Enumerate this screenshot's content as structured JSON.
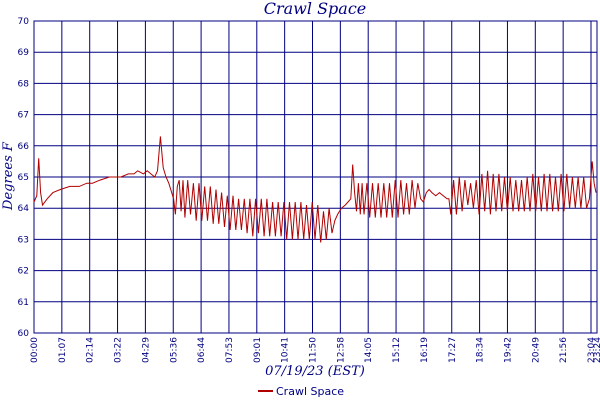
{
  "chart_data": {
    "type": "line",
    "title": "Crawl Space",
    "xlabel": "07/19/23 (EST)",
    "ylabel": "Degrees F",
    "ylim": [
      60,
      70
    ],
    "yticks": [
      60,
      61,
      62,
      63,
      64,
      65,
      66,
      67,
      68,
      69,
      70
    ],
    "xticks": [
      "00:00",
      "01:07",
      "02:14",
      "03:22",
      "04:29",
      "05:36",
      "06:44",
      "07:53",
      "09:01",
      "10:41",
      "11:50",
      "12:58",
      "14:05",
      "15:12",
      "16:19",
      "17:27",
      "18:34",
      "19:42",
      "20:49",
      "21:56",
      "23:04",
      "23:24"
    ],
    "grid": true,
    "legend": "bottom-center",
    "colors": {
      "series": "#b00000",
      "axis": "#000080"
    },
    "series": [
      {
        "name": "Crawl Space",
        "points": [
          [
            0,
            64.2
          ],
          [
            3,
            64.4
          ],
          [
            5,
            65.6
          ],
          [
            7,
            64.5
          ],
          [
            9,
            64.1
          ],
          [
            14,
            64.3
          ],
          [
            20,
            64.5
          ],
          [
            28,
            64.6
          ],
          [
            38,
            64.7
          ],
          [
            48,
            64.7
          ],
          [
            56,
            64.8
          ],
          [
            62,
            64.8
          ],
          [
            70,
            64.9
          ],
          [
            80,
            65.0
          ],
          [
            92,
            65.0
          ],
          [
            100,
            65.1
          ],
          [
            106,
            65.1
          ],
          [
            110,
            65.2
          ],
          [
            116,
            65.1
          ],
          [
            120,
            65.2
          ],
          [
            124,
            65.1
          ],
          [
            128,
            65.0
          ],
          [
            131,
            65.2
          ],
          [
            134,
            66.3
          ],
          [
            137,
            65.3
          ],
          [
            140,
            65.0
          ],
          [
            143,
            64.8
          ],
          [
            146,
            64.5
          ],
          [
            148,
            64.3
          ],
          [
            150,
            63.8
          ],
          [
            152,
            64.7
          ],
          [
            154,
            64.9
          ],
          [
            156,
            63.9
          ],
          [
            158,
            64.9
          ],
          [
            160,
            63.7
          ],
          [
            163,
            64.9
          ],
          [
            166,
            63.8
          ],
          [
            169,
            64.8
          ],
          [
            172,
            63.6
          ],
          [
            175,
            64.8
          ],
          [
            178,
            63.6
          ],
          [
            181,
            64.7
          ],
          [
            184,
            63.6
          ],
          [
            187,
            64.7
          ],
          [
            190,
            63.5
          ],
          [
            193,
            64.6
          ],
          [
            196,
            63.5
          ],
          [
            199,
            64.5
          ],
          [
            202,
            63.4
          ],
          [
            205,
            64.4
          ],
          [
            208,
            63.3
          ],
          [
            211,
            64.4
          ],
          [
            214,
            63.3
          ],
          [
            217,
            64.3
          ],
          [
            220,
            63.3
          ],
          [
            223,
            64.3
          ],
          [
            226,
            63.2
          ],
          [
            229,
            64.3
          ],
          [
            232,
            63.1
          ],
          [
            235,
            64.3
          ],
          [
            238,
            63.2
          ],
          [
            241,
            64.3
          ],
          [
            244,
            63.1
          ],
          [
            247,
            64.3
          ],
          [
            250,
            63.1
          ],
          [
            253,
            64.2
          ],
          [
            256,
            63.1
          ],
          [
            259,
            64.2
          ],
          [
            262,
            63.1
          ],
          [
            265,
            64.2
          ],
          [
            268,
            63.0
          ],
          [
            271,
            64.2
          ],
          [
            274,
            63.0
          ],
          [
            277,
            64.2
          ],
          [
            280,
            63.0
          ],
          [
            283,
            64.2
          ],
          [
            286,
            63.0
          ],
          [
            289,
            64.1
          ],
          [
            292,
            63.0
          ],
          [
            295,
            64.2
          ],
          [
            298,
            63.0
          ],
          [
            301,
            64.1
          ],
          [
            304,
            62.9
          ],
          [
            307,
            63.9
          ],
          [
            310,
            63.0
          ],
          [
            313,
            64.0
          ],
          [
            316,
            63.2
          ],
          [
            319,
            63.6
          ],
          [
            322,
            63.8
          ],
          [
            326,
            64.0
          ],
          [
            330,
            64.1
          ],
          [
            333,
            64.2
          ],
          [
            336,
            64.3
          ],
          [
            338,
            65.4
          ],
          [
            340,
            64.5
          ],
          [
            342,
            63.9
          ],
          [
            344,
            64.8
          ],
          [
            346,
            63.8
          ],
          [
            348,
            64.8
          ],
          [
            350,
            63.8
          ],
          [
            353,
            64.8
          ],
          [
            356,
            63.7
          ],
          [
            359,
            64.8
          ],
          [
            362,
            63.7
          ],
          [
            365,
            64.8
          ],
          [
            368,
            63.7
          ],
          [
            371,
            64.8
          ],
          [
            374,
            63.7
          ],
          [
            377,
            64.8
          ],
          [
            380,
            63.7
          ],
          [
            383,
            64.9
          ],
          [
            386,
            63.7
          ],
          [
            389,
            64.9
          ],
          [
            392,
            63.8
          ],
          [
            395,
            64.8
          ],
          [
            398,
            63.8
          ],
          [
            401,
            64.9
          ],
          [
            404,
            64.0
          ],
          [
            407,
            64.8
          ],
          [
            410,
            64.3
          ],
          [
            413,
            64.2
          ],
          [
            416,
            64.5
          ],
          [
            419,
            64.6
          ],
          [
            422,
            64.5
          ],
          [
            426,
            64.4
          ],
          [
            430,
            64.5
          ],
          [
            434,
            64.4
          ],
          [
            438,
            64.3
          ],
          [
            440,
            64.3
          ],
          [
            442,
            63.8
          ],
          [
            445,
            64.9
          ],
          [
            448,
            63.8
          ],
          [
            451,
            65.0
          ],
          [
            454,
            63.9
          ],
          [
            457,
            64.9
          ],
          [
            460,
            64.1
          ],
          [
            463,
            64.8
          ],
          [
            466,
            64.0
          ],
          [
            469,
            64.9
          ],
          [
            472,
            63.8
          ],
          [
            475,
            65.1
          ],
          [
            478,
            63.9
          ],
          [
            481,
            65.2
          ],
          [
            484,
            63.8
          ],
          [
            487,
            65.1
          ],
          [
            490,
            63.9
          ],
          [
            493,
            65.1
          ],
          [
            496,
            63.9
          ],
          [
            499,
            65.0
          ],
          [
            502,
            63.9
          ],
          [
            505,
            65.0
          ],
          [
            508,
            63.9
          ],
          [
            511,
            64.9
          ],
          [
            514,
            63.9
          ],
          [
            517,
            64.9
          ],
          [
            520,
            63.9
          ],
          [
            523,
            65.0
          ],
          [
            526,
            63.9
          ],
          [
            529,
            65.1
          ],
          [
            532,
            63.9
          ],
          [
            535,
            65.0
          ],
          [
            538,
            63.9
          ],
          [
            541,
            65.1
          ],
          [
            544,
            63.9
          ],
          [
            547,
            65.1
          ],
          [
            550,
            63.9
          ],
          [
            553,
            65.0
          ],
          [
            556,
            63.9
          ],
          [
            559,
            65.1
          ],
          [
            562,
            63.9
          ],
          [
            565,
            65.1
          ],
          [
            568,
            64.0
          ],
          [
            571,
            65.0
          ],
          [
            574,
            64.0
          ],
          [
            577,
            65.0
          ],
          [
            580,
            64.0
          ],
          [
            583,
            65.0
          ],
          [
            586,
            64.0
          ],
          [
            589,
            64.3
          ],
          [
            592,
            65.5
          ],
          [
            594,
            64.8
          ],
          [
            596,
            64.5
          ]
        ]
      }
    ]
  }
}
